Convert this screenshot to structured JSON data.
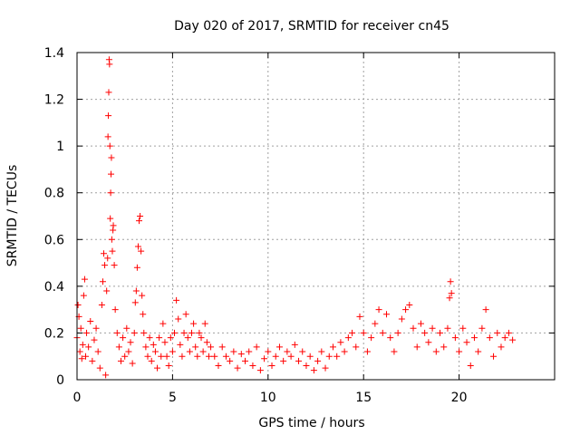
{
  "chart_data": {
    "type": "scatter",
    "title": "Day 020 of 2017, SRMTID for receiver cn45",
    "xlabel": "GPS time / hours",
    "ylabel": "SRMTID / TECUs",
    "xlim": [
      0,
      25
    ],
    "ylim": [
      0,
      1.4
    ],
    "x_ticks": [
      0,
      5,
      10,
      15,
      20
    ],
    "x_tick_labels": [
      "0",
      "5",
      "10",
      "15",
      "20"
    ],
    "y_ticks": [
      0,
      0.2,
      0.4,
      0.6,
      0.8,
      1.0,
      1.2,
      1.4
    ],
    "y_tick_labels": [
      "0",
      "0.2",
      "0.4",
      "0.6",
      "0.8",
      "1",
      "1.2",
      "1.4"
    ],
    "grid": true,
    "marker": "plus",
    "series": [
      {
        "name": "SRMTID",
        "color": "#ff0000",
        "points": [
          [
            0.0,
            0.18
          ],
          [
            0.05,
            0.32
          ],
          [
            0.1,
            0.27
          ],
          [
            0.15,
            0.12
          ],
          [
            0.2,
            0.22
          ],
          [
            0.25,
            0.09
          ],
          [
            0.3,
            0.15
          ],
          [
            0.35,
            0.36
          ],
          [
            0.4,
            0.43
          ],
          [
            0.45,
            0.1
          ],
          [
            0.5,
            0.2
          ],
          [
            0.6,
            0.14
          ],
          [
            0.7,
            0.25
          ],
          [
            0.8,
            0.08
          ],
          [
            0.9,
            0.17
          ],
          [
            1.0,
            0.22
          ],
          [
            1.1,
            0.12
          ],
          [
            1.2,
            0.05
          ],
          [
            1.3,
            0.32
          ],
          [
            1.35,
            0.42
          ],
          [
            1.4,
            0.54
          ],
          [
            1.45,
            0.49
          ],
          [
            1.5,
            0.02
          ],
          [
            1.55,
            0.38
          ],
          [
            1.6,
            0.52
          ],
          [
            1.62,
            1.04
          ],
          [
            1.64,
            1.13
          ],
          [
            1.66,
            1.23
          ],
          [
            1.68,
            1.37
          ],
          [
            1.7,
            1.35
          ],
          [
            1.72,
            1.0
          ],
          [
            1.74,
            0.69
          ],
          [
            1.76,
            0.8
          ],
          [
            1.78,
            0.88
          ],
          [
            1.8,
            0.95
          ],
          [
            1.82,
            0.6
          ],
          [
            1.85,
            0.55
          ],
          [
            1.88,
            0.64
          ],
          [
            1.9,
            0.66
          ],
          [
            1.95,
            0.49
          ],
          [
            2.0,
            0.3
          ],
          [
            2.1,
            0.2
          ],
          [
            2.2,
            0.14
          ],
          [
            2.3,
            0.08
          ],
          [
            2.4,
            0.18
          ],
          [
            2.5,
            0.1
          ],
          [
            2.6,
            0.22
          ],
          [
            2.7,
            0.12
          ],
          [
            2.8,
            0.16
          ],
          [
            2.9,
            0.07
          ],
          [
            3.0,
            0.2
          ],
          [
            3.05,
            0.33
          ],
          [
            3.1,
            0.38
          ],
          [
            3.15,
            0.48
          ],
          [
            3.2,
            0.57
          ],
          [
            3.25,
            0.68
          ],
          [
            3.3,
            0.7
          ],
          [
            3.35,
            0.55
          ],
          [
            3.4,
            0.36
          ],
          [
            3.45,
            0.28
          ],
          [
            3.5,
            0.2
          ],
          [
            3.6,
            0.14
          ],
          [
            3.7,
            0.1
          ],
          [
            3.8,
            0.18
          ],
          [
            3.9,
            0.08
          ],
          [
            4.0,
            0.15
          ],
          [
            4.1,
            0.12
          ],
          [
            4.2,
            0.05
          ],
          [
            4.3,
            0.18
          ],
          [
            4.4,
            0.1
          ],
          [
            4.5,
            0.24
          ],
          [
            4.6,
            0.16
          ],
          [
            4.7,
            0.1
          ],
          [
            4.8,
            0.06
          ],
          [
            4.9,
            0.18
          ],
          [
            5.0,
            0.12
          ],
          [
            5.1,
            0.2
          ],
          [
            5.2,
            0.34
          ],
          [
            5.3,
            0.26
          ],
          [
            5.4,
            0.15
          ],
          [
            5.5,
            0.1
          ],
          [
            5.6,
            0.2
          ],
          [
            5.7,
            0.28
          ],
          [
            5.8,
            0.18
          ],
          [
            5.9,
            0.12
          ],
          [
            6.0,
            0.2
          ],
          [
            6.1,
            0.24
          ],
          [
            6.2,
            0.14
          ],
          [
            6.3,
            0.1
          ],
          [
            6.4,
            0.2
          ],
          [
            6.5,
            0.18
          ],
          [
            6.6,
            0.12
          ],
          [
            6.7,
            0.24
          ],
          [
            6.8,
            0.16
          ],
          [
            6.9,
            0.1
          ],
          [
            7.0,
            0.14
          ],
          [
            7.2,
            0.1
          ],
          [
            7.4,
            0.06
          ],
          [
            7.6,
            0.14
          ],
          [
            7.8,
            0.1
          ],
          [
            8.0,
            0.08
          ],
          [
            8.2,
            0.12
          ],
          [
            8.4,
            0.05
          ],
          [
            8.6,
            0.11
          ],
          [
            8.8,
            0.08
          ],
          [
            9.0,
            0.12
          ],
          [
            9.2,
            0.06
          ],
          [
            9.4,
            0.14
          ],
          [
            9.6,
            0.04
          ],
          [
            9.8,
            0.09
          ],
          [
            10.0,
            0.12
          ],
          [
            10.2,
            0.06
          ],
          [
            10.4,
            0.1
          ],
          [
            10.6,
            0.14
          ],
          [
            10.8,
            0.08
          ],
          [
            11.0,
            0.12
          ],
          [
            11.2,
            0.1
          ],
          [
            11.4,
            0.15
          ],
          [
            11.6,
            0.08
          ],
          [
            11.8,
            0.12
          ],
          [
            12.0,
            0.06
          ],
          [
            12.2,
            0.1
          ],
          [
            12.4,
            0.04
          ],
          [
            12.6,
            0.08
          ],
          [
            12.8,
            0.12
          ],
          [
            13.0,
            0.05
          ],
          [
            13.2,
            0.1
          ],
          [
            13.4,
            0.14
          ],
          [
            13.6,
            0.1
          ],
          [
            13.8,
            0.16
          ],
          [
            14.0,
            0.12
          ],
          [
            14.2,
            0.18
          ],
          [
            14.4,
            0.2
          ],
          [
            14.6,
            0.14
          ],
          [
            14.8,
            0.27
          ],
          [
            15.0,
            0.2
          ],
          [
            15.2,
            0.12
          ],
          [
            15.4,
            0.18
          ],
          [
            15.6,
            0.24
          ],
          [
            15.8,
            0.3
          ],
          [
            16.0,
            0.2
          ],
          [
            16.2,
            0.28
          ],
          [
            16.4,
            0.18
          ],
          [
            16.6,
            0.12
          ],
          [
            16.8,
            0.2
          ],
          [
            17.0,
            0.26
          ],
          [
            17.2,
            0.3
          ],
          [
            17.4,
            0.32
          ],
          [
            17.6,
            0.22
          ],
          [
            17.8,
            0.14
          ],
          [
            18.0,
            0.24
          ],
          [
            18.2,
            0.2
          ],
          [
            18.4,
            0.16
          ],
          [
            18.6,
            0.22
          ],
          [
            18.8,
            0.12
          ],
          [
            19.0,
            0.2
          ],
          [
            19.2,
            0.14
          ],
          [
            19.4,
            0.22
          ],
          [
            19.5,
            0.35
          ],
          [
            19.55,
            0.42
          ],
          [
            19.6,
            0.37
          ],
          [
            19.8,
            0.18
          ],
          [
            20.0,
            0.12
          ],
          [
            20.2,
            0.22
          ],
          [
            20.4,
            0.16
          ],
          [
            20.6,
            0.06
          ],
          [
            20.8,
            0.18
          ],
          [
            21.0,
            0.12
          ],
          [
            21.2,
            0.22
          ],
          [
            21.4,
            0.3
          ],
          [
            21.6,
            0.18
          ],
          [
            21.8,
            0.1
          ],
          [
            22.0,
            0.2
          ],
          [
            22.2,
            0.14
          ],
          [
            22.4,
            0.18
          ],
          [
            22.6,
            0.2
          ],
          [
            22.8,
            0.17
          ]
        ]
      }
    ]
  }
}
